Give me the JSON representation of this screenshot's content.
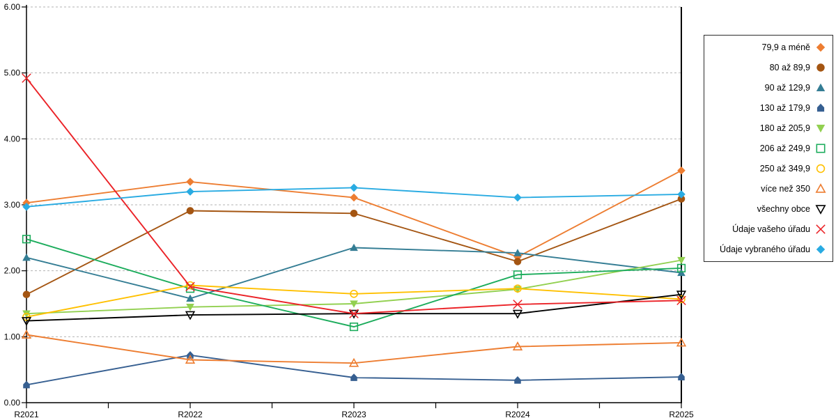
{
  "chart_data": {
    "type": "line",
    "title": "",
    "x_categories": [
      "R2021",
      "R2022",
      "R2023",
      "R2024",
      "R2025"
    ],
    "y_tick_values": [
      0,
      1,
      2,
      3,
      4,
      5,
      6
    ],
    "y_tick_labels": [
      "0.00",
      "1.00",
      "2.00",
      "3.00",
      "4.00",
      "5.00",
      "6.00"
    ],
    "ylim": [
      0,
      6
    ],
    "grid": "horizontal-dashed",
    "legend_position": "right",
    "series": [
      {
        "name": "79,9 a méně",
        "marker": "diamond-filled",
        "color": "#ED7D31",
        "values": [
          3.03,
          3.35,
          3.11,
          2.21,
          3.52
        ]
      },
      {
        "name": "80 až 89,9",
        "marker": "circle-filled",
        "color": "#A45512",
        "values": [
          1.64,
          2.91,
          2.87,
          2.14,
          3.09
        ]
      },
      {
        "name": "90 až 129,9",
        "marker": "triangle-up-filled",
        "color": "#347D94",
        "values": [
          2.2,
          1.58,
          2.35,
          2.27,
          1.97
        ]
      },
      {
        "name": "130 až 179,9",
        "marker": "house-filled",
        "color": "#365F91",
        "values": [
          0.27,
          0.72,
          0.38,
          0.34,
          0.39
        ]
      },
      {
        "name": "180 až 205,9",
        "marker": "triangle-down-filled",
        "color": "#92D050",
        "values": [
          1.35,
          1.45,
          1.5,
          1.72,
          2.16
        ]
      },
      {
        "name": "206 až 249,9",
        "marker": "square-open",
        "color": "#1CAC5C",
        "values": [
          2.48,
          1.73,
          1.15,
          1.94,
          2.04
        ]
      },
      {
        "name": "250 až 349,9",
        "marker": "circle-open",
        "color": "#FFC000",
        "values": [
          1.3,
          1.78,
          1.65,
          1.73,
          1.57
        ]
      },
      {
        "name": "více než 350",
        "marker": "triangle-up-open",
        "color": "#ED7D31",
        "values": [
          1.03,
          0.65,
          0.6,
          0.85,
          0.91
        ]
      },
      {
        "name": "všechny obce",
        "marker": "triangle-down-open",
        "color": "#000000",
        "values": [
          1.24,
          1.33,
          1.35,
          1.35,
          1.64
        ]
      },
      {
        "name": "Údaje vašeho úřadu",
        "marker": "x",
        "color": "#EB2227",
        "values": [
          4.92,
          1.76,
          1.35,
          1.49,
          1.55
        ]
      },
      {
        "name": "Údaje vybraného úřadu",
        "marker": "diamond-filled",
        "color": "#29ABE2",
        "values": [
          2.97,
          3.2,
          3.26,
          3.11,
          3.16
        ]
      }
    ]
  }
}
